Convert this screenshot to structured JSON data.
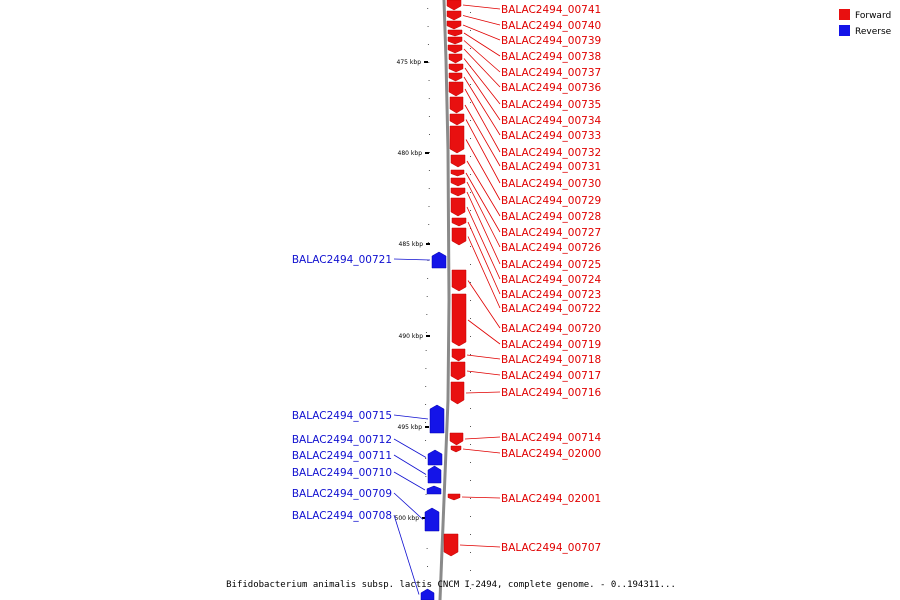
{
  "colors": {
    "forward": "#e81010",
    "reverse": "#1414e8",
    "forward_label": "#e00000",
    "reverse_label": "#1010d0",
    "backbone": "#8a8a8a"
  },
  "legend": [
    {
      "label": "Forward",
      "color": "#e81010"
    },
    {
      "label": "Reverse",
      "color": "#1414e8"
    }
  ],
  "caption": "Bifidobacterium animalis subsp. lactis CNCM I-2494, complete genome. - 0..194311...",
  "ticks": [
    "475 kbp",
    "480 kbp",
    "485 kbp",
    "490 kbp",
    "495 kbp",
    "500 kbp"
  ],
  "forward_genes": [
    "BALAC2494_00741",
    "BALAC2494_00740",
    "BALAC2494_00739",
    "BALAC2494_00738",
    "BALAC2494_00737",
    "BALAC2494_00736",
    "BALAC2494_00735",
    "BALAC2494_00734",
    "BALAC2494_00733",
    "BALAC2494_00732",
    "BALAC2494_00731",
    "BALAC2494_00730",
    "BALAC2494_00729",
    "BALAC2494_00728",
    "BALAC2494_00727",
    "BALAC2494_00726",
    "BALAC2494_00725",
    "BALAC2494_00724",
    "BALAC2494_00723",
    "BALAC2494_00722",
    "BALAC2494_00720",
    "BALAC2494_00719",
    "BALAC2494_00718",
    "BALAC2494_00717",
    "BALAC2494_00716",
    "BALAC2494_00714",
    "BALAC2494_02000",
    "BALAC2494_02001",
    "BALAC2494_00707"
  ],
  "reverse_genes": [
    "BALAC2494_00721",
    "BALAC2494_00715",
    "BALAC2494_00712",
    "BALAC2494_00711",
    "BALAC2494_00710",
    "BALAC2494_00709",
    "BALAC2494_00708"
  ]
}
